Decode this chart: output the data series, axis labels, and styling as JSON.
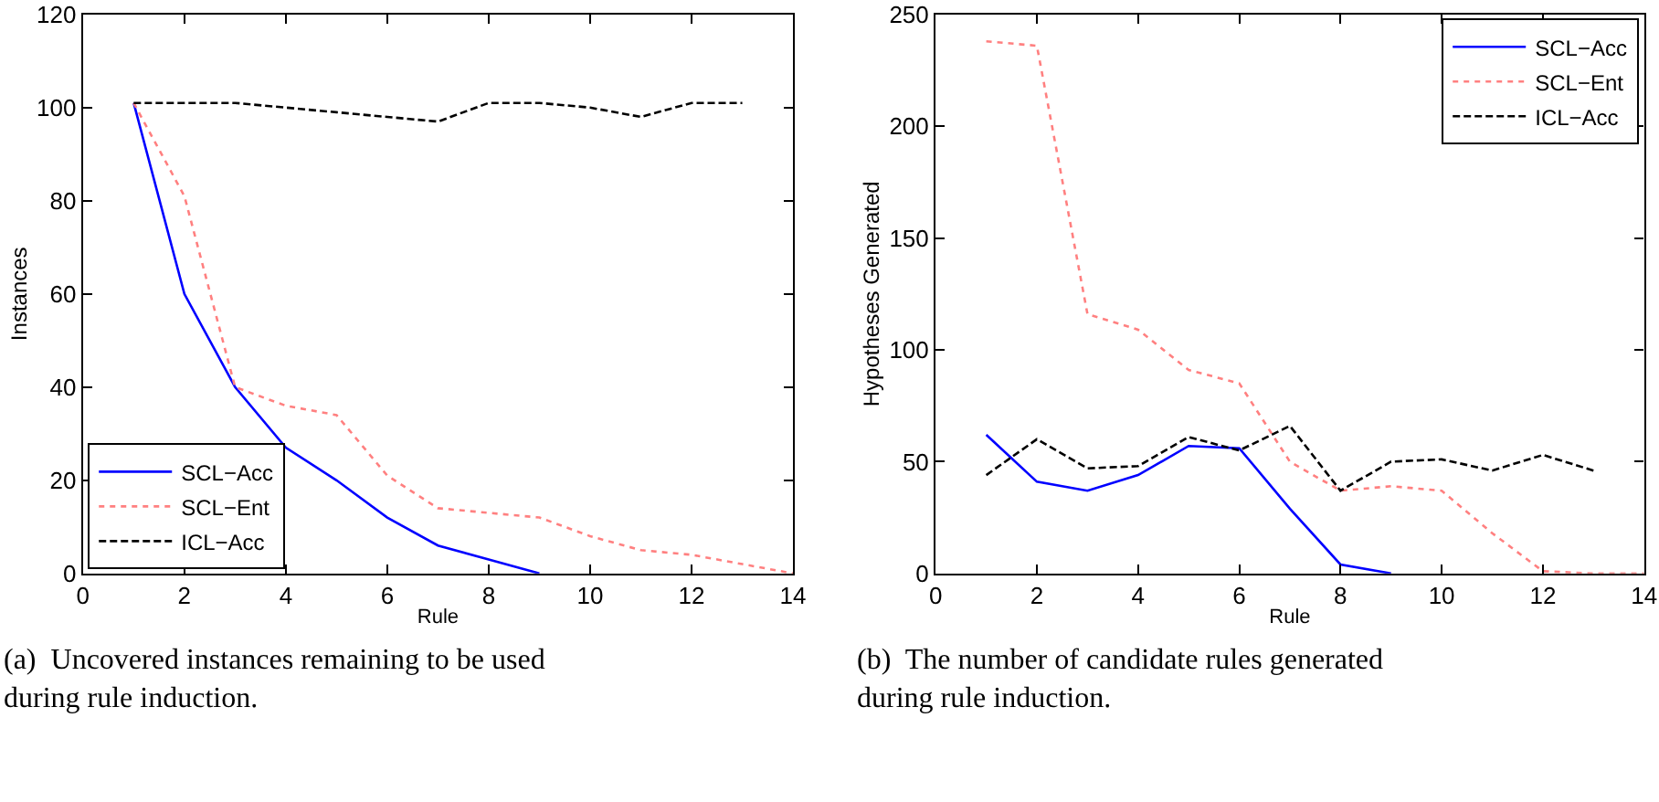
{
  "chart_data": [
    {
      "type": "line",
      "xlabel": "Rule",
      "ylabel": "Instances",
      "xlim": [
        0,
        14
      ],
      "xticks": [
        0,
        2,
        4,
        6,
        8,
        10,
        12,
        14
      ],
      "ylim": [
        0,
        120
      ],
      "yticks": [
        0,
        20,
        40,
        60,
        80,
        100,
        120
      ],
      "legend": "bottom left",
      "marker": "none",
      "series": [
        {
          "name": "SCL−Acc",
          "color": "#0000ff",
          "line_style": "solid",
          "x": [
            1,
            2,
            3,
            4,
            5,
            6,
            7,
            8,
            9
          ],
          "values": [
            101,
            60,
            40,
            27,
            20,
            12,
            6,
            3,
            0
          ]
        },
        {
          "name": "SCL−Ent",
          "color": "#ff8080",
          "line_style": "dotted",
          "x": [
            1,
            2,
            3,
            4,
            5,
            6,
            7,
            8,
            9,
            10,
            11,
            12,
            13,
            14
          ],
          "values": [
            101,
            81,
            40,
            36,
            34,
            21,
            14,
            13,
            12,
            8,
            5,
            4,
            2,
            0
          ]
        },
        {
          "name": "ICL−Acc",
          "color": "#000000",
          "line_style": "dashed",
          "x": [
            1,
            2,
            3,
            4,
            5,
            6,
            7,
            8,
            9,
            10,
            11,
            12,
            13
          ],
          "values": [
            101,
            101,
            101,
            100,
            99,
            98,
            97,
            101,
            101,
            100,
            98,
            101,
            101
          ]
        }
      ],
      "annotations": [
        "(a)  Uncovered instances remaining to be used during rule induction."
      ]
    },
    {
      "type": "line",
      "xlabel": "Rule",
      "ylabel": "Hypotheses Generated",
      "xlim": [
        0,
        14
      ],
      "xticks": [
        0,
        2,
        4,
        6,
        8,
        10,
        12,
        14
      ],
      "ylim": [
        0,
        250
      ],
      "yticks": [
        0,
        50,
        100,
        150,
        200,
        250
      ],
      "legend": "top right",
      "marker": "none",
      "series": [
        {
          "name": "SCL−Acc",
          "color": "#0000ff",
          "line_style": "solid",
          "x": [
            1,
            2,
            3,
            4,
            5,
            6,
            7,
            8,
            9
          ],
          "values": [
            62,
            41,
            37,
            44,
            57,
            56,
            29,
            4,
            0
          ]
        },
        {
          "name": "SCL−Ent",
          "color": "#ff8080",
          "line_style": "dotted",
          "x": [
            1,
            2,
            3,
            4,
            5,
            6,
            7,
            8,
            9,
            10,
            11,
            12,
            13,
            14
          ],
          "values": [
            238,
            236,
            116,
            109,
            91,
            85,
            50,
            37,
            39,
            37,
            18,
            1,
            0,
            0
          ]
        },
        {
          "name": "ICL−Acc",
          "color": "#000000",
          "line_style": "dashed",
          "x": [
            1,
            2,
            3,
            4,
            5,
            6,
            7,
            8,
            9,
            10,
            11,
            12,
            13
          ],
          "values": [
            44,
            60,
            47,
            48,
            61,
            55,
            66,
            37,
            50,
            51,
            46,
            53,
            46
          ]
        }
      ],
      "annotations": [
        "(b)  The number of candidate rules generated during rule induction."
      ]
    }
  ]
}
